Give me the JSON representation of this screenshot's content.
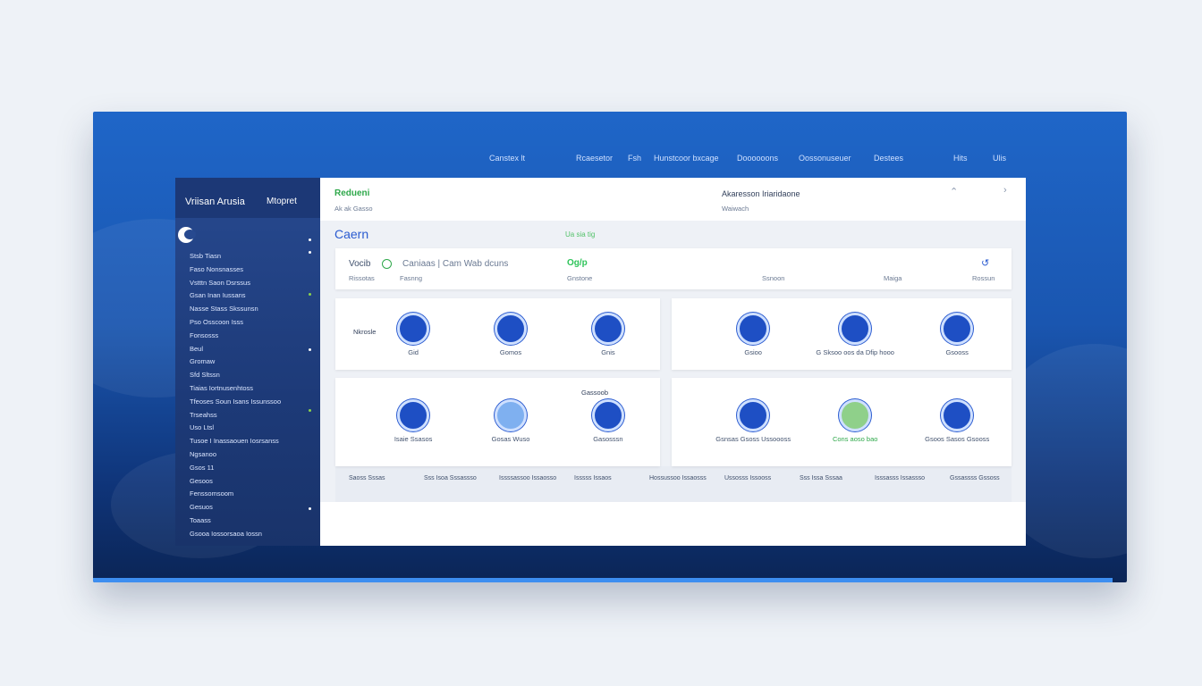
{
  "nav": [
    "Canstex lt",
    "Rcaesetor",
    "Fsh",
    "Hunstcoor bxcage",
    "Doooooons",
    "Oossonuseuer",
    "Destees",
    "Hits",
    "Ulis"
  ],
  "sidebar": {
    "title": "Vriisan Arusia",
    "account": "Mtopret",
    "menu": [
      "Stsb Tiasn",
      "Faso Nonsnasses",
      "Vstttn Saon Dsrssus",
      "Gsan Inan Iussans",
      "Nasse Stass Skssunsn",
      "Pso Osscoon Isss",
      "Fonsosss",
      "Beul",
      "Gromaw",
      "Sfd Sltssn",
      "Tiaias Iortnusenhtoss",
      "Tfeoses Soun Isans Issunssoo",
      "Trseahss",
      "Uso Ltsl",
      "Tusoe I Inassaouen Iosrsanss",
      "Ngsanoo",
      "Gsos 11",
      "Gesoos",
      "Fenssomsoom",
      "Gesuos",
      "Toaass",
      "Gsooa Iossorsaoa Iossn"
    ]
  },
  "header": {
    "title": "Redueni",
    "subtitle": "Ak ak Gasso",
    "right_title": "Akaresson Iriaridaone",
    "right_subtitle": "Waiwach"
  },
  "section": {
    "title": "Caern",
    "status": "Ua sia tig"
  },
  "toolbar": {
    "label": "Vocib",
    "tabs": "Caniaas | Cam Wab dcuns",
    "badge": "Og/p",
    "sub": [
      "Rissotas",
      "Fasnng",
      "Gnstone",
      "Ssnoon",
      "Maiga",
      "Rossun"
    ]
  },
  "cards": [
    {
      "note": "Nkrosle",
      "items": [
        "Gid",
        "Gomos",
        "Gnis"
      ]
    },
    {
      "items": [
        "Gsioo",
        "G Sksoo oos da Dfip hooo",
        "Gsooss"
      ]
    },
    {
      "note": "Gassoob",
      "items": [
        "Isaie Ssasos",
        "Gosas Wuso",
        "Gasosssn"
      ]
    },
    {
      "items": [
        "Gsnsas Gsoss Ussoooss",
        "Cons aoso bao",
        "Gsoos Sasos Gsooss"
      ]
    }
  ],
  "table": [
    "Saoss Sssas",
    "Sss Isoa Sssassso",
    "Issssassoo Issaosso",
    "Isssss Issaos",
    "Hossussoo Issaosss",
    "Ussosss Issooss",
    "Sss Issa Sssaa",
    "Isssasss Issassso",
    "Gssassss Gssoss"
  ]
}
